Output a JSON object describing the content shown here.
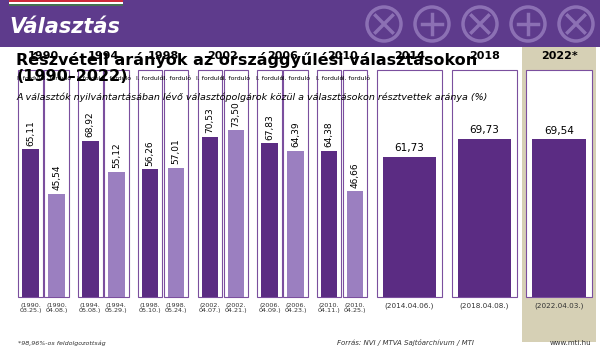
{
  "chart_data": {
    "type": "bar",
    "banner_title": "Választás",
    "banner_year": "2022",
    "title": "Részvételi arányok az országgyűlési választásokon\n(1990–2022)",
    "subtitle": "A választók nyilvántartásában lévő választópolgárok közül a választásokon résztvettek aránya (%)",
    "categories": [
      "(1990. 03.25.)",
      "(1990. 04.08.)",
      "(1994. 05.08.)",
      "(1994. 05.29.)",
      "(1998. 05.10.)",
      "(1998. 05.24.)",
      "(2002. 04.07.)",
      "(2002. 04.21.)",
      "(2006. 04.09.)",
      "(2006. 04.23.)",
      "(2010. 04.11.)",
      "(2010. 04.25.)",
      "(2014.04.06.)",
      "(2018.04.08.)",
      "(2022.04.03.)"
    ],
    "group_labels": [
      "1990",
      "1990",
      "1994",
      "1994",
      "1998",
      "1998",
      "2002",
      "2002",
      "2006",
      "2006",
      "2010",
      "2010",
      "2014",
      "2018",
      "2022*"
    ],
    "round_labels": [
      "I. forduló",
      "II. forduló",
      "I. forduló",
      "II. forduló",
      "I. forduló",
      "II. forduló",
      "I. forduló",
      "II. forduló",
      "I. forduló",
      "II. forduló",
      "I. forduló",
      "II. forduló",
      null,
      null,
      null
    ],
    "values": [
      65.11,
      45.54,
      68.92,
      55.12,
      56.26,
      57.01,
      70.53,
      73.5,
      67.83,
      64.39,
      64.38,
      46.66,
      61.73,
      69.73,
      69.54
    ],
    "value_labels": [
      "65,11",
      "45,54",
      "68,92",
      "55,12",
      "56,26",
      "57,01",
      "70,53",
      "73,50",
      "67,83",
      "64,39",
      "64,38",
      "46,66",
      "61,73",
      "69,73",
      "69,54"
    ],
    "colors": [
      "#5b2c83",
      "#9b7fc0",
      "#5b2c83",
      "#9b7fc0",
      "#5b2c83",
      "#9b7fc0",
      "#5b2c83",
      "#9b7fc0",
      "#5b2c83",
      "#9b7fc0",
      "#5b2c83",
      "#9b7fc0",
      "#5b2c83",
      "#5b2c83",
      "#5b2c83"
    ],
    "ylim": [
      0,
      100
    ],
    "yticks": [],
    "tick_labels": false,
    "data_labels": true,
    "footnote": "*98,96%-os feldolgozottság",
    "source": "Forrás: NVI / MTVA Sajtóarchívum / MTI",
    "website": "www.mti.hu"
  }
}
